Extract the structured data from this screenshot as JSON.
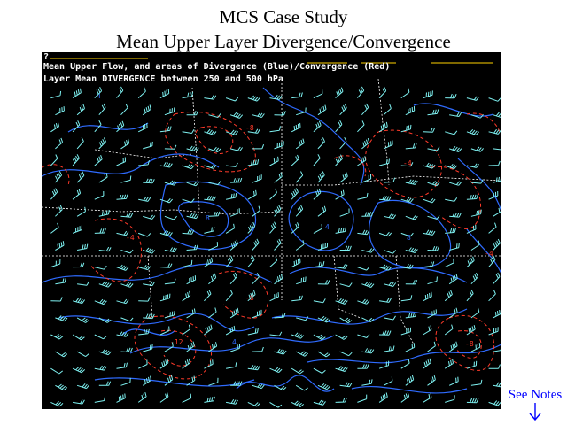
{
  "page": {
    "title_line1": "MCS Case Study",
    "title_line2": "Mean Upper Layer Divergence/Convergence"
  },
  "map": {
    "overlay_line0": "?",
    "overlay_line1": "Mean Upper Flow, and areas of Divergence (Blue)/Convergence (Red)",
    "overlay_line2": "Layer Mean DIVERGENCE between 250 and 500 hPa",
    "colors": {
      "background": "#000000",
      "divergence_contour": "#2f6bff",
      "convergence_contour": "#ff3a2a",
      "wind_barb": "#7ff2f2",
      "boundary": "#ffffff",
      "overlay_text": "#ffffff",
      "header_rule": "#ffd200"
    },
    "contour_labels": {
      "convergence": [
        "-8",
        "-4",
        "-12",
        "-8",
        "-4",
        "-4",
        "-8"
      ],
      "divergence": [
        "4",
        "8",
        "4",
        "8",
        "4"
      ]
    }
  },
  "notes_link": {
    "label": "See Notes",
    "icon": "down-arrow-icon"
  }
}
